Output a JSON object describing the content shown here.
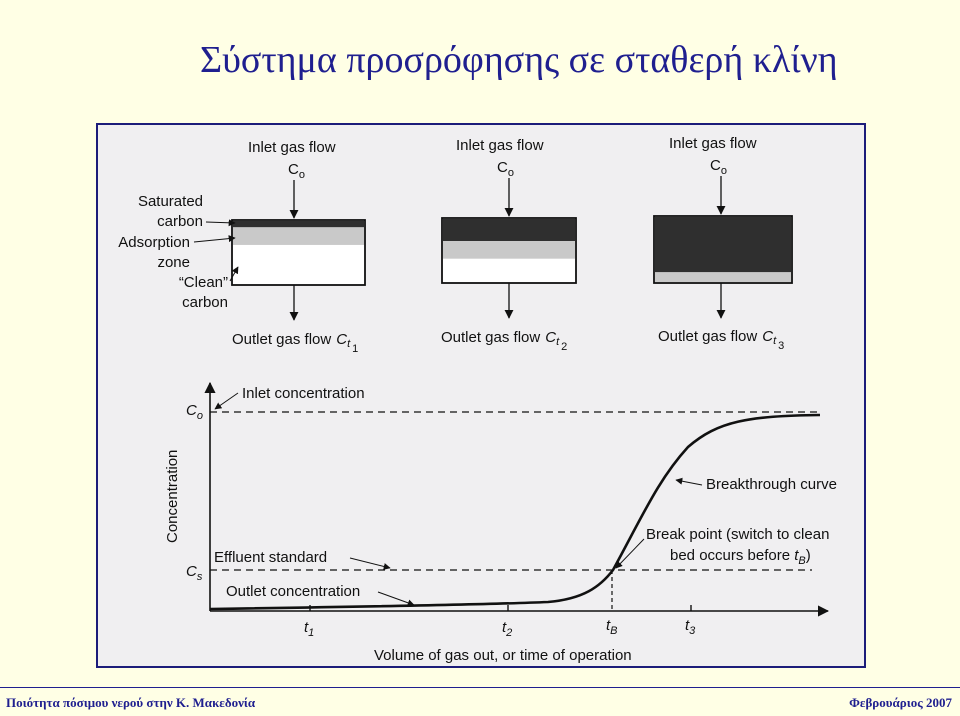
{
  "slide": {
    "title": "Σύστημα προσρόφησης σε σταθερή κλίνη",
    "footer_left": "Ποιότητα πόσιμου νερού στην Κ. Μακεδονία",
    "footer_right": "Φεβρουάριος 2007"
  },
  "diagram": {
    "inlet": {
      "text": "Inlet gas flow",
      "symbol": "C",
      "symbol_sub": "o"
    },
    "bed_labels": {
      "saturated": [
        "Saturated",
        "carbon"
      ],
      "adsorption": [
        "Adsorption",
        "zone"
      ],
      "clean": [
        "“Clean”",
        "carbon"
      ]
    },
    "outlet": [
      {
        "text": "Outlet gas flow",
        "symbol": "C",
        "sub_letter": "t",
        "sub_index": "1"
      },
      {
        "text": "Outlet gas flow",
        "symbol": "C",
        "sub_letter": "t",
        "sub_index": "2"
      },
      {
        "text": "Outlet gas flow",
        "symbol": "C",
        "sub_letter": "t",
        "sub_index": "3"
      }
    ],
    "saturated_fraction": [
      0.1,
      0.35,
      0.85
    ]
  },
  "graph": {
    "y_axis_label": "Concentration",
    "x_axis_label": "Volume of gas out, or time of operation",
    "co_symbol": "C",
    "co_sub": "o",
    "cs_symbol": "C",
    "cs_sub": "s",
    "inlet_concentration": "Inlet concentration",
    "breakthrough_curve": "Breakthrough curve",
    "break_point_line1": "Break point (switch to clean",
    "break_point_line2": "bed occurs before ",
    "break_point_symbol": "t",
    "break_point_sub": "B",
    "break_point_close": ")",
    "effluent_standard": "Effluent standard",
    "outlet_concentration": "Outlet concentration",
    "ticks": [
      {
        "symbol": "t",
        "sub": "1"
      },
      {
        "symbol": "t",
        "sub": "2"
      },
      {
        "symbol": "t",
        "sub": "B"
      },
      {
        "symbol": "t",
        "sub": "3"
      }
    ]
  }
}
